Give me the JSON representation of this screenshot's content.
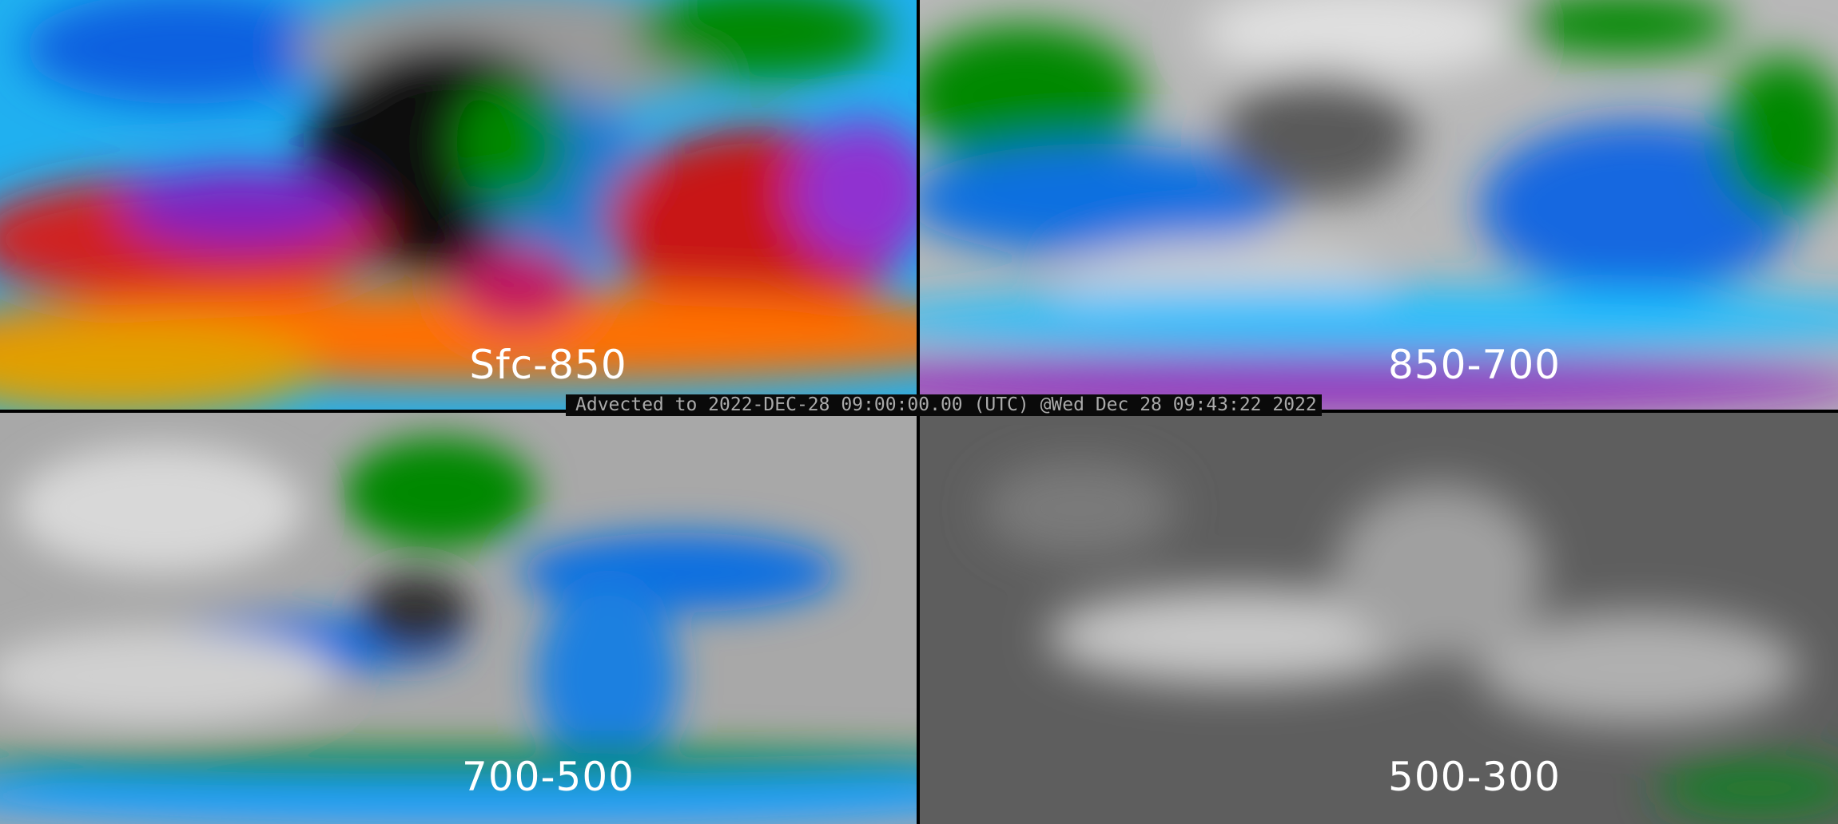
{
  "panels": [
    {
      "label": "Sfc-850",
      "palette": [
        "#ff8c00",
        "#e02020",
        "#9020c0",
        "#20c0ff",
        "#1060e0",
        "#008800",
        "#888888",
        "#000000"
      ]
    },
    {
      "label": "850-700",
      "palette": [
        "#1070e0",
        "#20c0ff",
        "#008800",
        "#9020c0",
        "#c8c8c8",
        "#000000"
      ]
    },
    {
      "label": "700-500",
      "palette": [
        "#b0b0b0",
        "#1070e0",
        "#008800",
        "#20c0ff",
        "#000000"
      ]
    },
    {
      "label": "500-300",
      "palette": [
        "#606060",
        "#c8c8c8",
        "#008800",
        "#000000"
      ]
    }
  ],
  "banner": {
    "text": "Advected to 2022-DEC-28 09:00:00.00 (UTC) @Wed Dec 28 09:43:22 2022"
  }
}
